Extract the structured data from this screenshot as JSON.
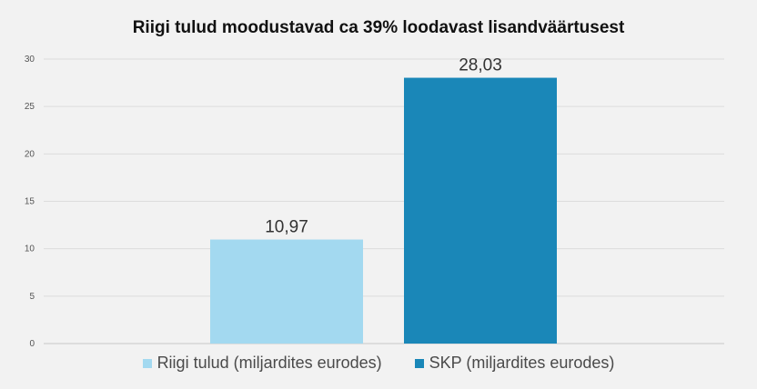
{
  "chart_data": {
    "type": "bar",
    "title": "Riigi tulud moodustavad ca 39% loodavast lisandväärtusest",
    "xlabel": "",
    "ylabel": "",
    "ylim": [
      0,
      30
    ],
    "yticks": [
      "0",
      "5",
      "10",
      "15",
      "20",
      "25",
      "30"
    ],
    "grid": true,
    "legend_position": "bottom",
    "series": [
      {
        "name": "Riigi tulud (miljardites eurodes)",
        "values": [
          10.97
        ],
        "label": "10,97",
        "color": "#a3d9f0"
      },
      {
        "name": "SKP (miljardites eurodes)",
        "values": [
          28.03
        ],
        "label": "28,03",
        "color": "#1a87b8"
      }
    ]
  }
}
